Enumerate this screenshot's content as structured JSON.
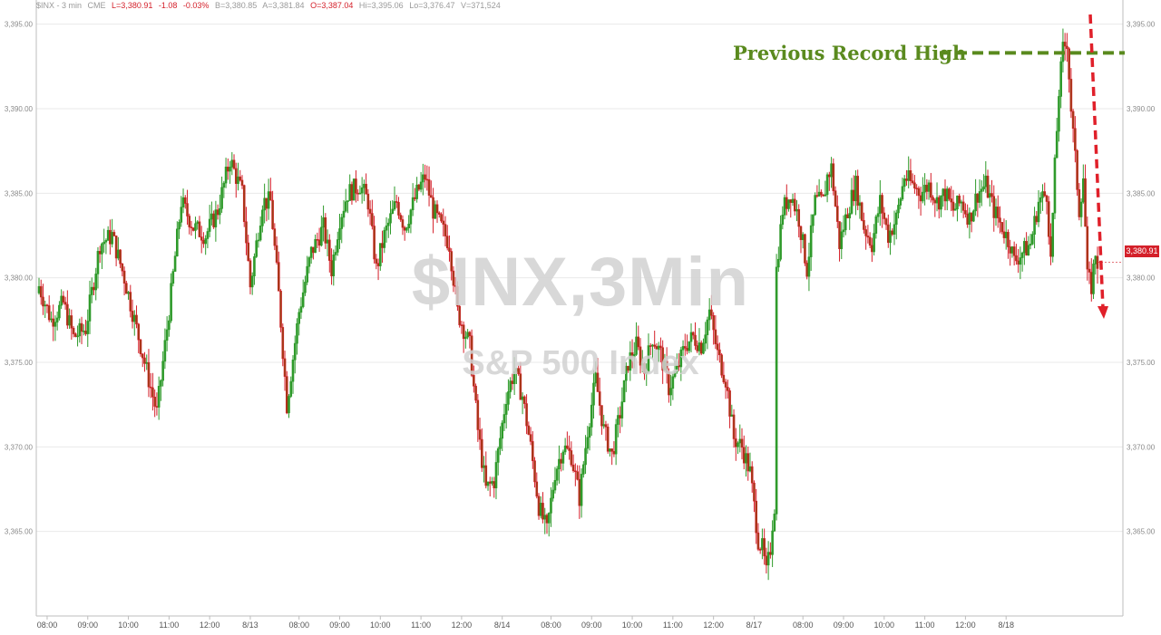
{
  "infobar": {
    "symbol": "$INX - 3 min",
    "exchange": "CME",
    "last": "L=3,380.91",
    "change": "-1.08",
    "change_pct": "-0.03%",
    "bid": "B=3,380.85",
    "ask": "A=3,381.84",
    "open": "O=3,387.04",
    "high": "Hi=3,395.06",
    "low": "Lo=3,376.47",
    "volume": "V=371,524"
  },
  "watermark": {
    "title": "$INX,3Min",
    "subtitle": "S&P 500 Index"
  },
  "annotation": {
    "text": "Previous Record High",
    "level": 3393.3
  },
  "last_price_label": "3,380.91",
  "colors": {
    "up": "#2e9a2a",
    "down": "#d4202a",
    "down_body": "#9a3d12",
    "annotation": "#5a8a1e",
    "arrow": "#e0202a",
    "grid": "#e9e9e9"
  },
  "chart_data": {
    "type": "candlestick",
    "interval": "3 min",
    "ylim": [
      3360,
      3396
    ],
    "y_ticks": [
      3365,
      3370,
      3375,
      3380,
      3385,
      3390,
      3395
    ],
    "y_tick_labels": [
      "3,365.00",
      "3,370.00",
      "3,375.00",
      "3,380.00",
      "3,385.00",
      "3,390.00",
      "3,395.00"
    ],
    "x_ticks": [
      {
        "label": "08:00",
        "i": 4
      },
      {
        "label": "09:00",
        "i": 24
      },
      {
        "label": "10:00",
        "i": 44
      },
      {
        "label": "11:00",
        "i": 64
      },
      {
        "label": "12:00",
        "i": 84
      },
      {
        "label": "8/13",
        "i": 104
      },
      {
        "label": "08:00",
        "i": 128
      },
      {
        "label": "09:00",
        "i": 148
      },
      {
        "label": "10:00",
        "i": 168
      },
      {
        "label": "11:00",
        "i": 188
      },
      {
        "label": "12:00",
        "i": 208
      },
      {
        "label": "8/14",
        "i": 228
      },
      {
        "label": "08:00",
        "i": 252
      },
      {
        "label": "09:00",
        "i": 272
      },
      {
        "label": "10:00",
        "i": 292
      },
      {
        "label": "11:00",
        "i": 312
      },
      {
        "label": "12:00",
        "i": 332
      },
      {
        "label": "8/17",
        "i": 352
      },
      {
        "label": "08:00",
        "i": 376
      },
      {
        "label": "09:00",
        "i": 396
      },
      {
        "label": "10:00",
        "i": 416
      },
      {
        "label": "11:00",
        "i": 436
      },
      {
        "label": "12:00",
        "i": 456
      },
      {
        "label": "8/18",
        "i": 476
      }
    ],
    "close_path": [
      [
        0,
        3379.5
      ],
      [
        6,
        3377.5
      ],
      [
        12,
        3378.5
      ],
      [
        17,
        3376.5
      ],
      [
        23,
        3377.0
      ],
      [
        30,
        3382.0
      ],
      [
        36,
        3382.5
      ],
      [
        42,
        3380.0
      ],
      [
        48,
        3377.0
      ],
      [
        55,
        3373.5
      ],
      [
        58,
        3372.0
      ],
      [
        64,
        3378.0
      ],
      [
        70,
        3384.5
      ],
      [
        76,
        3383.0
      ],
      [
        82,
        3382.5
      ],
      [
        88,
        3384.0
      ],
      [
        94,
        3387.0
      ],
      [
        100,
        3385.0
      ],
      [
        104,
        3379.5
      ],
      [
        110,
        3384.5
      ],
      [
        114,
        3384.5
      ],
      [
        118,
        3379.0
      ],
      [
        122,
        3372.5
      ],
      [
        128,
        3378.0
      ],
      [
        134,
        3381.5
      ],
      [
        140,
        3383.0
      ],
      [
        144,
        3380.5
      ],
      [
        148,
        3383.5
      ],
      [
        152,
        3385.0
      ],
      [
        158,
        3385.5
      ],
      [
        162,
        3384.5
      ],
      [
        166,
        3380.5
      ],
      [
        170,
        3382.5
      ],
      [
        176,
        3384.5
      ],
      [
        180,
        3383.0
      ],
      [
        186,
        3385.0
      ],
      [
        190,
        3386.0
      ],
      [
        194,
        3384.0
      ],
      [
        198,
        3383.0
      ],
      [
        202,
        3382.0
      ],
      [
        206,
        3378.0
      ],
      [
        212,
        3376.0
      ],
      [
        216,
        3371.0
      ],
      [
        220,
        3367.5
      ],
      [
        224,
        3368.0
      ],
      [
        230,
        3373.0
      ],
      [
        234,
        3374.5
      ],
      [
        238,
        3373.0
      ],
      [
        242,
        3370.0
      ],
      [
        246,
        3366.5
      ],
      [
        250,
        3365.0
      ],
      [
        254,
        3368.5
      ],
      [
        258,
        3370.0
      ],
      [
        262,
        3369.5
      ],
      [
        266,
        3367.0
      ],
      [
        270,
        3371.0
      ],
      [
        274,
        3374.0
      ],
      [
        278,
        3371.0
      ],
      [
        282,
        3369.5
      ],
      [
        286,
        3372.0
      ],
      [
        290,
        3375.0
      ],
      [
        294,
        3376.0
      ],
      [
        298,
        3374.5
      ],
      [
        302,
        3376.5
      ],
      [
        306,
        3375.5
      ],
      [
        310,
        3373.5
      ],
      [
        314,
        3374.5
      ],
      [
        318,
        3376.0
      ],
      [
        322,
        3376.5
      ],
      [
        326,
        3376.0
      ],
      [
        330,
        3378.0
      ],
      [
        334,
        3375.5
      ],
      [
        338,
        3374.0
      ],
      [
        342,
        3370.5
      ],
      [
        346,
        3370.0
      ],
      [
        350,
        3368.5
      ],
      [
        354,
        3364.5
      ],
      [
        356,
        3364.0
      ],
      [
        358,
        3362.5
      ],
      [
        360,
        3364.0
      ],
      [
        361,
        3365.5
      ],
      [
        362,
        3366.5
      ],
      [
        363,
        3380.5
      ],
      [
        366,
        3384.0
      ],
      [
        370,
        3385.0
      ],
      [
        374,
        3383.5
      ],
      [
        378,
        3380.5
      ],
      [
        382,
        3384.5
      ],
      [
        386,
        3384.5
      ],
      [
        388,
        3386.0
      ],
      [
        390,
        3386.5
      ],
      [
        394,
        3382.0
      ],
      [
        398,
        3384.0
      ],
      [
        402,
        3385.5
      ],
      [
        406,
        3383.0
      ],
      [
        410,
        3382.0
      ],
      [
        414,
        3384.5
      ],
      [
        418,
        3382.5
      ],
      [
        422,
        3383.5
      ],
      [
        426,
        3386.0
      ],
      [
        430,
        3385.5
      ],
      [
        434,
        3385.0
      ],
      [
        438,
        3385.5
      ],
      [
        442,
        3384.5
      ],
      [
        446,
        3385.0
      ],
      [
        450,
        3384.0
      ],
      [
        454,
        3384.5
      ],
      [
        458,
        3383.5
      ],
      [
        462,
        3385.0
      ],
      [
        466,
        3385.5
      ],
      [
        470,
        3384.0
      ],
      [
        474,
        3383.0
      ],
      [
        478,
        3382.0
      ],
      [
        480,
        3381.0
      ],
      [
        484,
        3381.5
      ],
      [
        488,
        3382.0
      ],
      [
        492,
        3384.5
      ],
      [
        496,
        3385.0
      ],
      [
        498,
        3381.0
      ],
      [
        500,
        3386.5
      ],
      [
        502,
        3391.0
      ],
      [
        504,
        3393.5
      ],
      [
        506,
        3394.0
      ],
      [
        508,
        3390.0
      ],
      [
        510,
        3387.0
      ],
      [
        512,
        3384.0
      ],
      [
        514,
        3386.0
      ],
      [
        516,
        3380.0
      ],
      [
        518,
        3379.5
      ],
      [
        520,
        3381.5
      ],
      [
        521,
        3380.91
      ]
    ]
  }
}
